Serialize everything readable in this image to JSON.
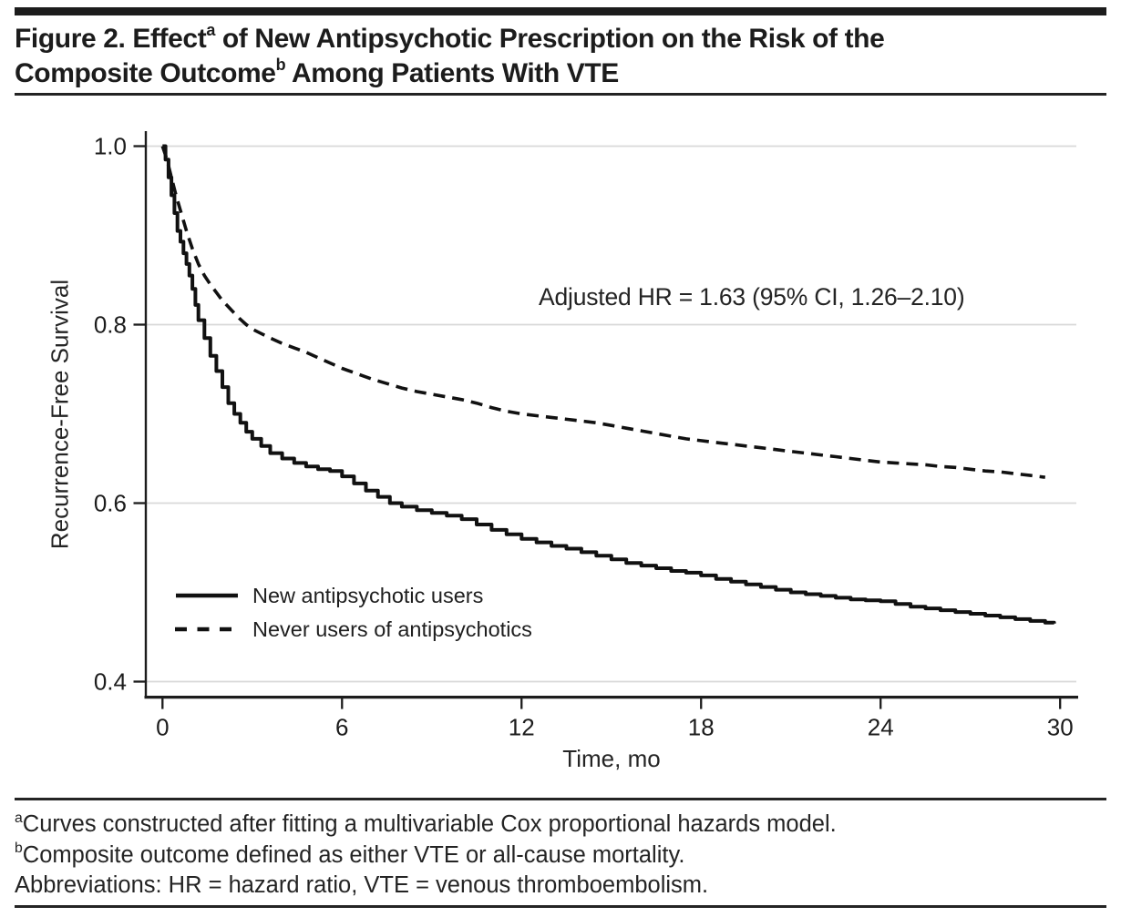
{
  "colors": {
    "ink": "#1c1c1c",
    "curve": "#111111",
    "gridline": "#d9d9d9",
    "background": "#ffffff"
  },
  "figure": {
    "title": {
      "line1_pre": "Figure 2. Effect",
      "line1_sup": "a",
      "line1_post": " of New Antipsychotic Prescription on the Risk of the",
      "line2_pre": "Composite Outcome",
      "line2_sup": "b",
      "line2_post": " Among Patients With VTE"
    },
    "footnotes": [
      {
        "sup": "a",
        "text": "Curves constructed after fitting a multivariable Cox proportional hazards model."
      },
      {
        "sup": "b",
        "text": "Composite outcome defined as either VTE or all-cause mortality."
      },
      {
        "sup": "",
        "text": "Abbreviations: HR = hazard ratio, VTE = venous thromboembolism."
      }
    ]
  },
  "chart_data": {
    "type": "line",
    "subtype": "kaplan-meier-survival",
    "title": "",
    "xlabel": "Time, mo",
    "ylabel": "Recurrence-Free Survival",
    "xlim": [
      0,
      30
    ],
    "ylim": [
      0.4,
      1.0
    ],
    "xticks": [
      0,
      6,
      12,
      18,
      24,
      30
    ],
    "yticks": [
      1.0,
      0.8,
      0.6,
      0.4
    ],
    "grid": true,
    "legend_position": "inside-lower-left",
    "annotation": "Adjusted HR = 1.63 (95% CI, 1.26–2.10)",
    "series": [
      {
        "name": "New antipsychotic users",
        "style": "solid",
        "x": [
          0,
          0.1,
          0.2,
          0.3,
          0.4,
          0.5,
          0.6,
          0.7,
          0.8,
          0.9,
          1,
          1.1,
          1.2,
          1.4,
          1.6,
          1.8,
          2,
          2.2,
          2.4,
          2.6,
          2.8,
          3,
          3.3,
          3.6,
          4,
          4.4,
          4.8,
          5.2,
          5.6,
          6,
          6.4,
          6.8,
          7.2,
          7.6,
          8,
          8.5,
          9,
          9.5,
          10,
          10.5,
          11,
          11.5,
          12,
          12.5,
          13,
          13.5,
          14,
          14.5,
          15,
          15.5,
          16,
          16.5,
          17,
          17.5,
          18,
          18.5,
          19,
          19.5,
          20,
          20.5,
          21,
          21.5,
          22,
          22.5,
          23,
          23.5,
          24,
          24.5,
          25,
          25.5,
          26,
          26.5,
          27,
          27.5,
          28,
          28.5,
          29,
          29.5,
          29.8
        ],
        "y": [
          1,
          0.985,
          0.965,
          0.945,
          0.925,
          0.905,
          0.893,
          0.88,
          0.868,
          0.855,
          0.84,
          0.822,
          0.805,
          0.785,
          0.765,
          0.748,
          0.73,
          0.712,
          0.7,
          0.69,
          0.68,
          0.672,
          0.664,
          0.656,
          0.65,
          0.645,
          0.641,
          0.638,
          0.636,
          0.63,
          0.622,
          0.614,
          0.607,
          0.6,
          0.596,
          0.592,
          0.589,
          0.586,
          0.582,
          0.576,
          0.57,
          0.565,
          0.56,
          0.556,
          0.552,
          0.549,
          0.545,
          0.541,
          0.537,
          0.533,
          0.53,
          0.527,
          0.524,
          0.522,
          0.519,
          0.515,
          0.512,
          0.509,
          0.506,
          0.503,
          0.5,
          0.498,
          0.496,
          0.494,
          0.492,
          0.491,
          0.49,
          0.487,
          0.484,
          0.482,
          0.48,
          0.478,
          0.476,
          0.474,
          0.472,
          0.47,
          0.468,
          0.466,
          0.465
        ]
      },
      {
        "name": "Never users of antipsychotics",
        "style": "dashed",
        "x": [
          0,
          0.15,
          0.3,
          0.45,
          0.6,
          0.8,
          1,
          1.2,
          1.4,
          1.6,
          1.8,
          2,
          2.2,
          2.4,
          2.6,
          2.8,
          3,
          3.3,
          3.6,
          4,
          4.4,
          4.8,
          5.2,
          5.6,
          6,
          6.5,
          7,
          7.5,
          8,
          8.5,
          9,
          9.5,
          10,
          10.5,
          11,
          11.5,
          12,
          12.5,
          13,
          13.5,
          14,
          14.5,
          15,
          15.5,
          16,
          16.5,
          17,
          17.5,
          18,
          18.5,
          19,
          19.5,
          20,
          20.5,
          21,
          21.5,
          22,
          22.5,
          23,
          23.5,
          24,
          24.5,
          25,
          25.5,
          26,
          26.5,
          27,
          27.5,
          28,
          28.5,
          29,
          29.5
        ],
        "y": [
          1,
          0.985,
          0.965,
          0.945,
          0.928,
          0.905,
          0.885,
          0.868,
          0.855,
          0.845,
          0.836,
          0.827,
          0.82,
          0.813,
          0.806,
          0.8,
          0.795,
          0.79,
          0.785,
          0.779,
          0.774,
          0.769,
          0.763,
          0.757,
          0.751,
          0.745,
          0.739,
          0.734,
          0.729,
          0.725,
          0.722,
          0.719,
          0.716,
          0.712,
          0.707,
          0.703,
          0.7,
          0.698,
          0.696,
          0.694,
          0.692,
          0.69,
          0.687,
          0.684,
          0.681,
          0.678,
          0.675,
          0.672,
          0.67,
          0.668,
          0.666,
          0.664,
          0.662,
          0.66,
          0.658,
          0.656,
          0.654,
          0.652,
          0.65,
          0.648,
          0.646,
          0.645,
          0.644,
          0.643,
          0.641,
          0.64,
          0.638,
          0.636,
          0.635,
          0.633,
          0.631,
          0.629
        ]
      }
    ]
  }
}
